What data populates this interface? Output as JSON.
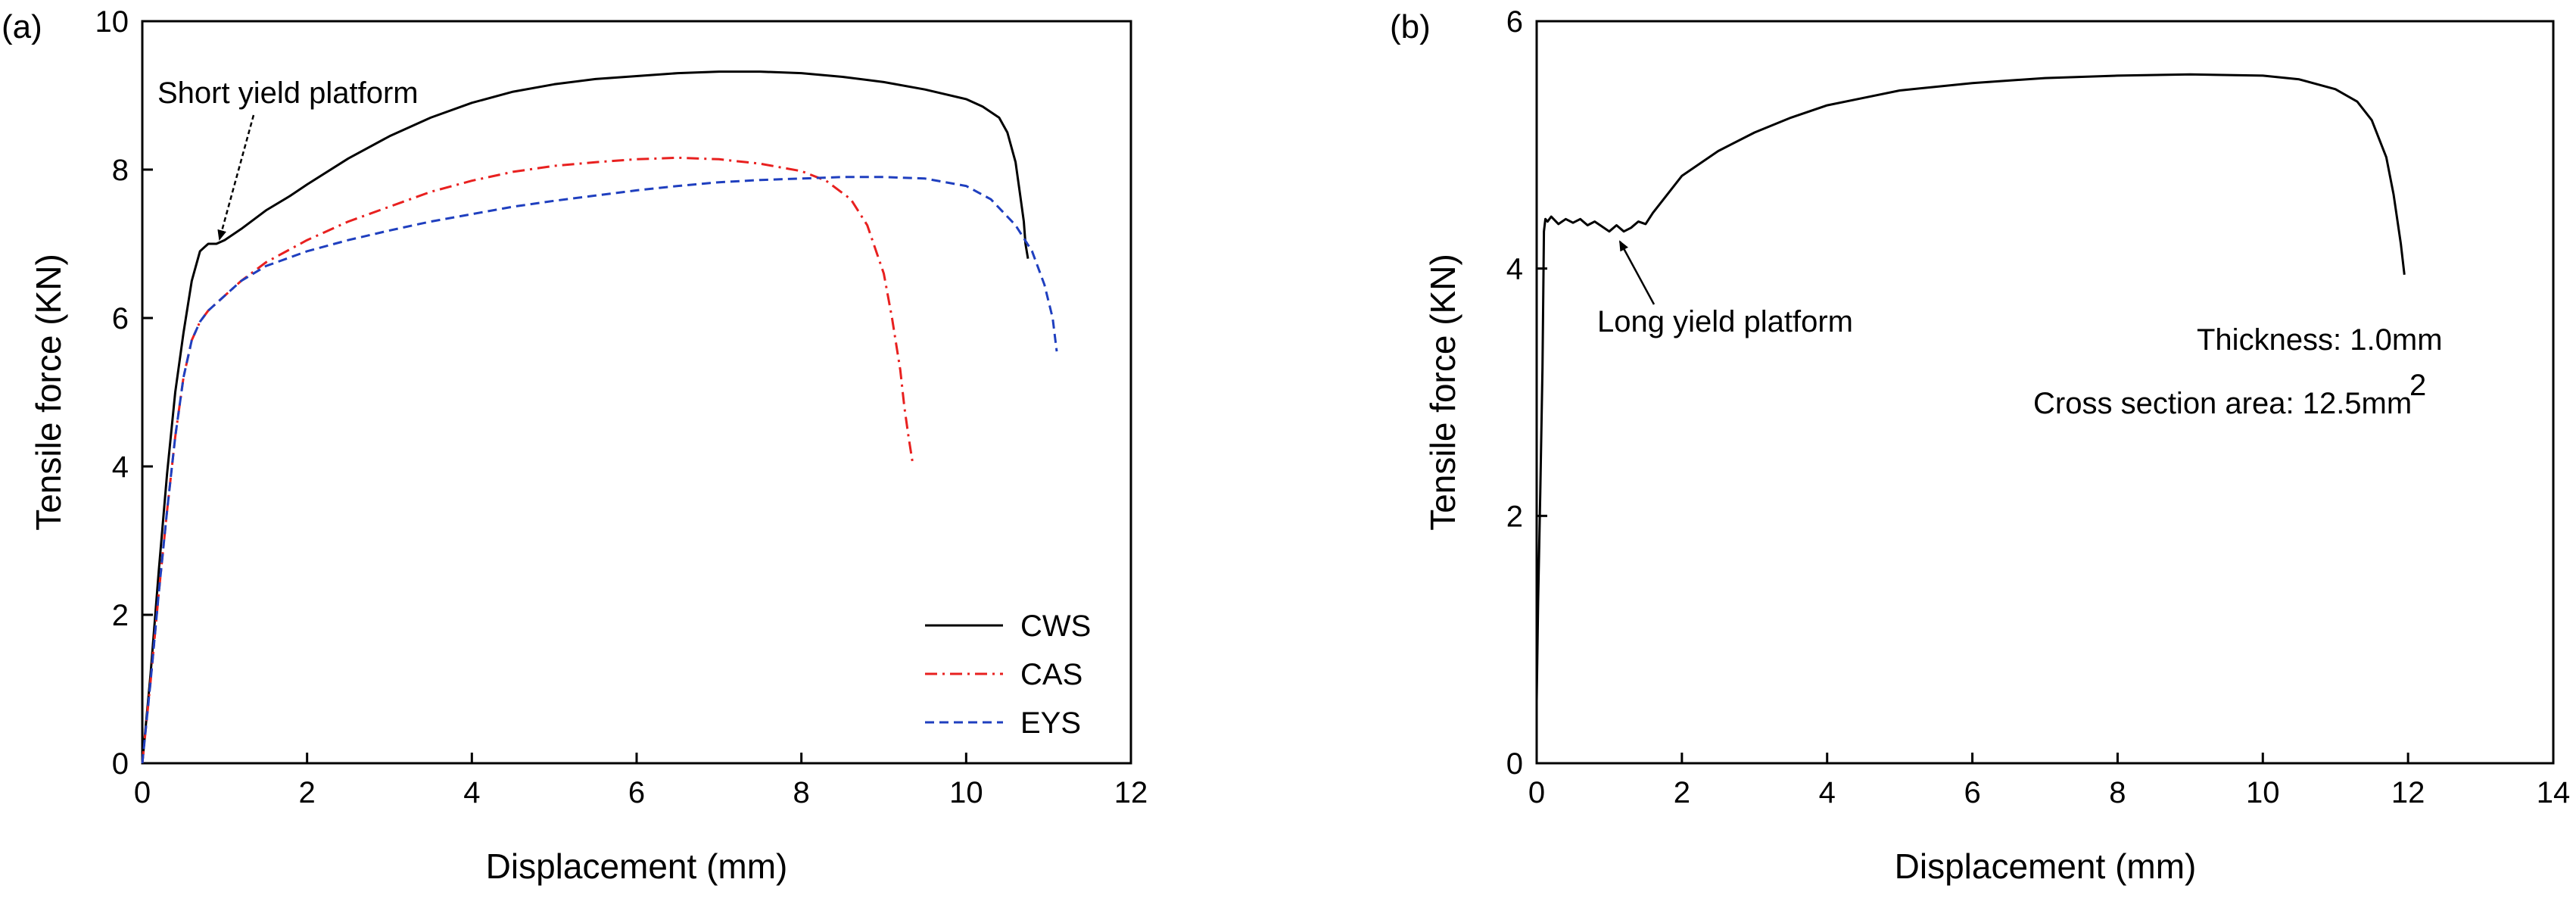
{
  "chart_data": [
    {
      "panel_label": "(a)",
      "type": "line",
      "xlabel": "Displacement (mm)",
      "ylabel": "Tensile force (KN)",
      "xlim": [
        0,
        12
      ],
      "ylim": [
        0,
        10
      ],
      "xticks": [
        0,
        2,
        4,
        6,
        8,
        10,
        12
      ],
      "yticks": [
        0,
        2,
        4,
        6,
        8,
        10
      ],
      "grid": false,
      "legend_position": "bottom-right",
      "series": [
        {
          "name": "CWS",
          "color": "#000000",
          "style": "solid",
          "x": [
            0,
            0.1,
            0.2,
            0.3,
            0.4,
            0.5,
            0.6,
            0.7,
            0.75,
            0.8,
            0.9,
            1.0,
            1.2,
            1.5,
            1.8,
            2.0,
            2.5,
            3.0,
            3.5,
            4.0,
            4.5,
            5.0,
            5.5,
            6.0,
            6.5,
            7.0,
            7.5,
            8.0,
            8.5,
            9.0,
            9.5,
            10.0,
            10.2,
            10.4,
            10.5,
            10.6,
            10.65,
            10.7,
            10.72,
            10.75
          ],
          "y": [
            0,
            1.2,
            2.6,
            3.9,
            5.0,
            5.8,
            6.5,
            6.9,
            6.95,
            7.0,
            7.0,
            7.05,
            7.2,
            7.45,
            7.65,
            7.8,
            8.15,
            8.45,
            8.7,
            8.9,
            9.05,
            9.15,
            9.22,
            9.26,
            9.3,
            9.32,
            9.32,
            9.3,
            9.25,
            9.18,
            9.08,
            8.95,
            8.85,
            8.7,
            8.5,
            8.1,
            7.7,
            7.3,
            7.0,
            6.8
          ]
        },
        {
          "name": "CAS",
          "color": "#e8201f",
          "style": "dashdot",
          "x": [
            0,
            0.1,
            0.2,
            0.3,
            0.4,
            0.5,
            0.6,
            0.7,
            0.8,
            1.0,
            1.2,
            1.5,
            2.0,
            2.5,
            3.0,
            3.5,
            4.0,
            4.5,
            5.0,
            5.5,
            6.0,
            6.5,
            7.0,
            7.5,
            8.0,
            8.3,
            8.6,
            8.8,
            9.0,
            9.1,
            9.2,
            9.25,
            9.3,
            9.35
          ],
          "y": [
            0,
            1.1,
            2.3,
            3.4,
            4.4,
            5.2,
            5.7,
            5.95,
            6.1,
            6.3,
            6.5,
            6.75,
            7.05,
            7.3,
            7.5,
            7.7,
            7.85,
            7.97,
            8.05,
            8.1,
            8.14,
            8.16,
            8.14,
            8.08,
            7.98,
            7.85,
            7.6,
            7.25,
            6.6,
            6.0,
            5.3,
            4.8,
            4.4,
            4.05
          ]
        },
        {
          "name": "EYS",
          "color": "#1f3fbf",
          "style": "dashed",
          "x": [
            0,
            0.1,
            0.2,
            0.3,
            0.4,
            0.5,
            0.6,
            0.7,
            0.8,
            1.0,
            1.2,
            1.5,
            2.0,
            2.5,
            3.0,
            3.5,
            4.0,
            4.5,
            5.0,
            5.5,
            6.0,
            6.5,
            7.0,
            7.5,
            8.0,
            8.5,
            9.0,
            9.5,
            10.0,
            10.3,
            10.6,
            10.8,
            10.95,
            11.05,
            11.1
          ],
          "y": [
            0,
            1.1,
            2.3,
            3.4,
            4.4,
            5.2,
            5.7,
            5.95,
            6.1,
            6.3,
            6.5,
            6.7,
            6.9,
            7.05,
            7.18,
            7.3,
            7.4,
            7.5,
            7.58,
            7.65,
            7.72,
            7.78,
            7.83,
            7.86,
            7.88,
            7.9,
            7.9,
            7.88,
            7.78,
            7.6,
            7.25,
            6.9,
            6.45,
            6.0,
            5.55
          ]
        }
      ],
      "annotations": [
        {
          "text": "Short yield platform",
          "x": 0.85,
          "y": 6.95
        }
      ]
    },
    {
      "panel_label": "(b)",
      "type": "line",
      "xlabel": "Displacement (mm)",
      "ylabel": "Tensile force (KN)",
      "xlim": [
        0,
        14
      ],
      "ylim": [
        0,
        6
      ],
      "xticks": [
        0,
        2,
        4,
        6,
        8,
        10,
        12,
        14
      ],
      "yticks": [
        0,
        2,
        4,
        6
      ],
      "grid": false,
      "series": [
        {
          "name": "",
          "color": "#000000",
          "style": "solid",
          "x": [
            0,
            0.02,
            0.05,
            0.08,
            0.1,
            0.12,
            0.15,
            0.2,
            0.3,
            0.4,
            0.5,
            0.6,
            0.7,
            0.8,
            0.9,
            1.0,
            1.1,
            1.2,
            1.3,
            1.4,
            1.5,
            1.6,
            1.8,
            2.0,
            2.5,
            3.0,
            3.5,
            4.0,
            4.5,
            5.0,
            6.0,
            7.0,
            8.0,
            9.0,
            10.0,
            10.5,
            11.0,
            11.3,
            11.5,
            11.7,
            11.8,
            11.9,
            11.95
          ],
          "y": [
            0.5,
            1.3,
            2.2,
            3.2,
            4.3,
            4.4,
            4.38,
            4.42,
            4.36,
            4.4,
            4.37,
            4.4,
            4.35,
            4.38,
            4.34,
            4.3,
            4.35,
            4.3,
            4.33,
            4.38,
            4.36,
            4.45,
            4.6,
            4.75,
            4.95,
            5.1,
            5.22,
            5.32,
            5.38,
            5.44,
            5.5,
            5.54,
            5.56,
            5.57,
            5.56,
            5.53,
            5.45,
            5.35,
            5.2,
            4.9,
            4.6,
            4.2,
            3.95
          ]
        }
      ],
      "annotations": [
        {
          "text": "Long yield platform",
          "x": 1.1,
          "y": 4.3
        },
        {
          "text": "Thickness: 1.0mm"
        },
        {
          "text": "Cross section area: 12.5mm",
          "superscript": "2"
        }
      ]
    }
  ]
}
